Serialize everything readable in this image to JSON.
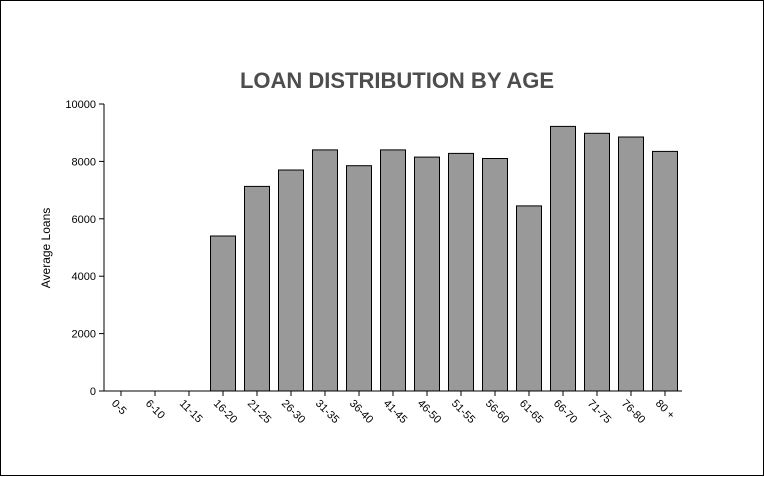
{
  "chart_data": {
    "type": "bar",
    "title": "LOAN DISTRIBUTION BY AGE",
    "xlabel": "",
    "ylabel": "Average Loans",
    "ylim": [
      0,
      10000
    ],
    "yticks": [
      "0",
      "2000",
      "4000",
      "6000",
      "8000",
      "10000"
    ],
    "categories": [
      "0-5",
      "6-10",
      "11-15",
      "16-20",
      "21-25",
      "26-30",
      "31-35",
      "36-40",
      "41-45",
      "46-50",
      "51-55",
      "56-60",
      "61-65",
      "66-70",
      "71-75",
      "76-80",
      "80 +"
    ],
    "values": [
      0,
      0,
      0,
      5400,
      7130,
      7700,
      8400,
      7850,
      8400,
      8150,
      8280,
      8100,
      6450,
      9220,
      8980,
      8850,
      8350
    ],
    "grid": false,
    "legend": "none",
    "colors": {
      "bar_fill": "#999999",
      "bar_stroke": "#000000",
      "title": "#4d4d4d"
    }
  }
}
